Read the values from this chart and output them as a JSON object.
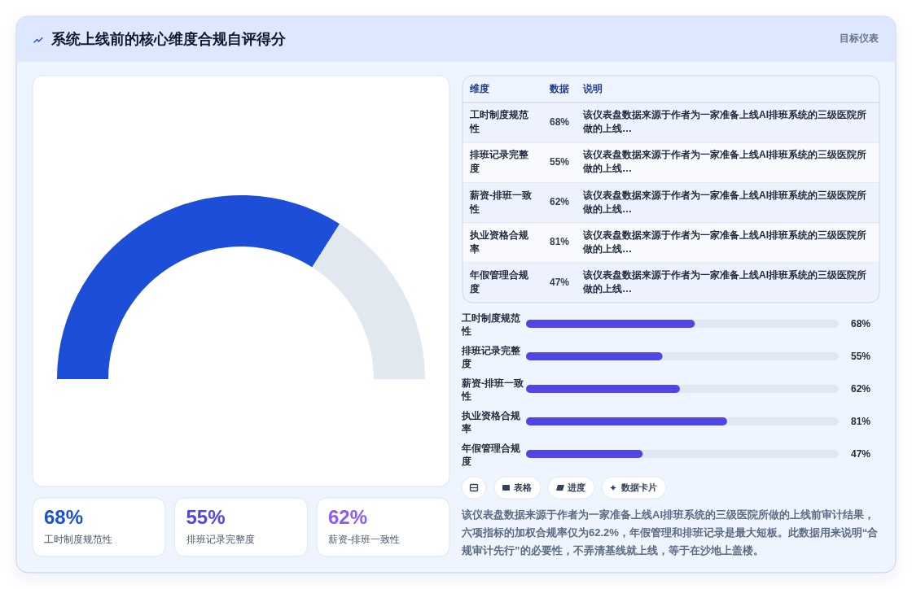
{
  "chart_data": [
    {
      "type": "donut",
      "title": "系统上线前的核心维度合规自评得分",
      "annotations": [
        "目标仪表"
      ],
      "categories": [
        null,
        null
      ],
      "values": [
        68,
        32
      ],
      "colors": [
        "#1d4ed8",
        "#e2e8f0"
      ]
    },
    {
      "type": "other",
      "annotations": [
        "68%",
        "工时制度规范性",
        "55%",
        "排班记录完整度",
        "62%",
        "薪资-排班一致性"
      ]
    },
    {
      "type": "other",
      "annotations": [
        "维度",
        "数据",
        "说明",
        "工时制度规范性",
        "68%",
        "该仪表盘数据来源于作者为一家准备上线AI排班系统的三级医院所做的上线…",
        "排班记录完整度",
        "55%",
        "该仪表盘数据来源于作者为一家准备上线AI排班系统的三级医院所做的上线…",
        "薪资-排班一致性",
        "62%",
        "该仪表盘数据来源于作者为一家准备上线AI排班系统的三级医院所做的上线…",
        "执业资格合规率",
        "81%",
        "该仪表盘数据来源于作者为一家准备上线AI排班系统的三级医院所做的上线…",
        "年假管理合规度",
        "47%",
        "该仪表盘数据来源于作者为一家准备上线AI排班系统的三级医院所做的上线…"
      ]
    },
    {
      "type": "bar",
      "orientation": "horizontal",
      "categories": [
        "工时制度规范性",
        "排班记录完整度",
        "薪资-排班一致性",
        "执业资格合规率",
        "年假管理合规度"
      ],
      "values": [
        68,
        55,
        62,
        81,
        47
      ],
      "value_labels": [
        "68%",
        "55%",
        "62%",
        "81%",
        "47%"
      ],
      "color": "#4f46e5",
      "xlim": [
        0,
        126
      ],
      "tick_labels": "y"
    },
    {
      "type": "other",
      "annotations": [
        "表格",
        "进度",
        "数据卡片",
        "该仪表盘数据来源于作者为一家准备上线AI排班系统的三级医院所做的上线前审计结果，六项指标的加权合规率仅为62.2%，年假管理和排班记录是最大短板。此数据用来说明“合规审计先行”的必要性，不弄清基线就上线，等于在沙地上盖楼。"
      ]
    }
  ]
}
